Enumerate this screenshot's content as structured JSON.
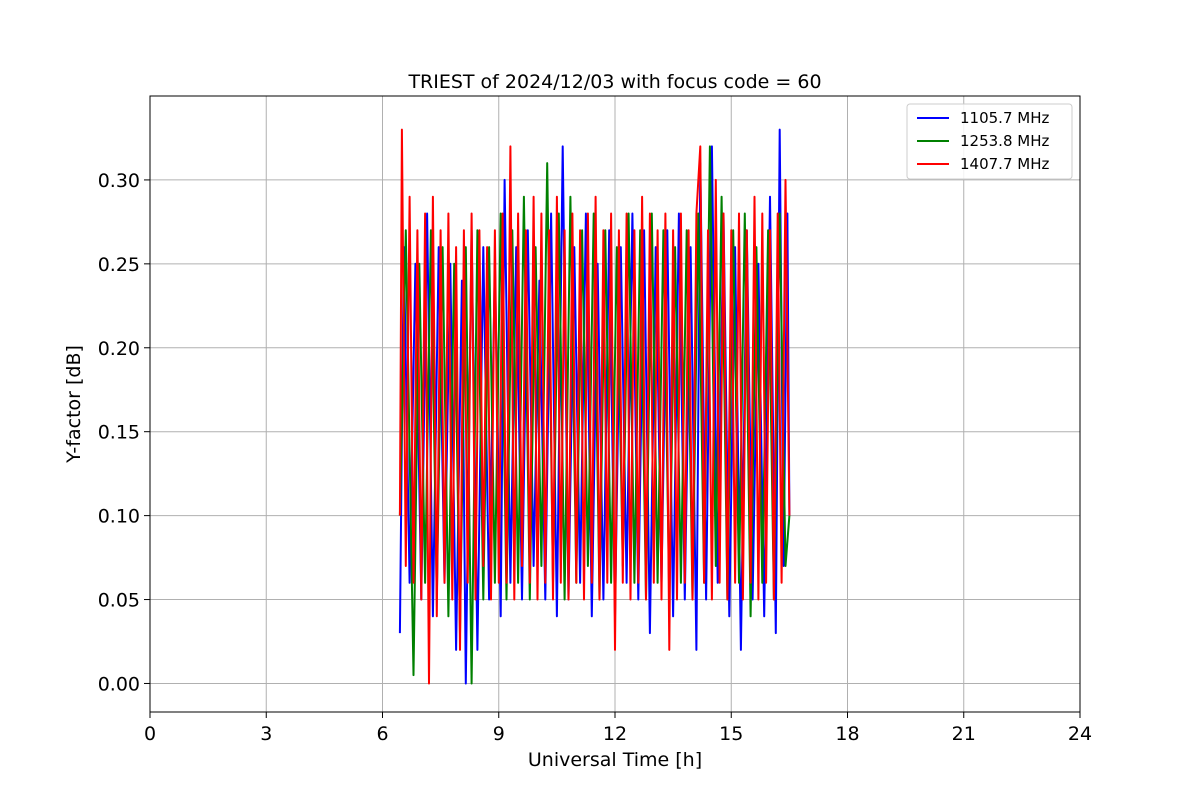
{
  "chart_data": {
    "type": "line",
    "title": "TRIEST of 2024/12/03 with focus code = 60",
    "xlabel": "Universal Time [h]",
    "ylabel": "Y-factor [dB]",
    "xlim": [
      0,
      24
    ],
    "ylim": [
      -0.017,
      0.35
    ],
    "xticks": [
      0,
      3,
      6,
      9,
      12,
      15,
      18,
      21,
      24
    ],
    "xtick_labels": [
      "0",
      "3",
      "6",
      "9",
      "12",
      "15",
      "18",
      "21",
      "24"
    ],
    "yticks": [
      0.0,
      0.05,
      0.1,
      0.15,
      0.2,
      0.25,
      0.3
    ],
    "ytick_labels": [
      "0.00",
      "0.05",
      "0.10",
      "0.15",
      "0.20",
      "0.25",
      "0.30"
    ],
    "grid": true,
    "legend_position": "top-right",
    "series": [
      {
        "name": "1105.7 MHz",
        "color": "#0000ff",
        "x": [
          6.45,
          6.55,
          6.7,
          6.85,
          7.0,
          7.15,
          7.3,
          7.45,
          7.6,
          7.75,
          7.9,
          8.05,
          8.15,
          8.3,
          8.45,
          8.6,
          8.75,
          8.9,
          9.05,
          9.15,
          9.3,
          9.45,
          9.6,
          9.75,
          9.9,
          10.05,
          10.2,
          10.35,
          10.5,
          10.65,
          10.8,
          10.95,
          11.1,
          11.25,
          11.4,
          11.55,
          11.7,
          11.85,
          12.0,
          12.15,
          12.3,
          12.45,
          12.6,
          12.75,
          12.9,
          13.05,
          13.2,
          13.35,
          13.5,
          13.65,
          13.8,
          13.95,
          14.1,
          14.2,
          14.35,
          14.5,
          14.65,
          14.8,
          14.95,
          15.1,
          15.25,
          15.4,
          15.55,
          15.7,
          15.85,
          16.0,
          16.15,
          16.25,
          16.35,
          16.45,
          16.5
        ],
        "y": [
          0.03,
          0.26,
          0.06,
          0.25,
          0.05,
          0.28,
          0.04,
          0.26,
          0.06,
          0.25,
          0.02,
          0.24,
          0.0,
          0.27,
          0.02,
          0.26,
          0.05,
          0.25,
          0.04,
          0.3,
          0.06,
          0.26,
          0.05,
          0.27,
          0.07,
          0.24,
          0.05,
          0.28,
          0.04,
          0.32,
          0.05,
          0.26,
          0.06,
          0.28,
          0.04,
          0.25,
          0.05,
          0.27,
          0.04,
          0.26,
          0.06,
          0.28,
          0.05,
          0.27,
          0.03,
          0.26,
          0.06,
          0.27,
          0.04,
          0.28,
          0.05,
          0.26,
          0.02,
          0.31,
          0.05,
          0.32,
          0.06,
          0.28,
          0.04,
          0.26,
          0.02,
          0.27,
          0.05,
          0.25,
          0.04,
          0.29,
          0.03,
          0.33,
          0.07,
          0.28,
          0.1
        ]
      },
      {
        "name": "1253.8 MHz",
        "color": "#008000",
        "x": [
          6.45,
          6.6,
          6.75,
          6.8,
          6.95,
          7.1,
          7.25,
          7.4,
          7.55,
          7.7,
          7.85,
          8.0,
          8.15,
          8.3,
          8.45,
          8.6,
          8.75,
          8.9,
          9.05,
          9.2,
          9.35,
          9.5,
          9.65,
          9.8,
          9.95,
          10.1,
          10.25,
          10.4,
          10.55,
          10.7,
          10.85,
          11.0,
          11.15,
          11.3,
          11.45,
          11.6,
          11.75,
          11.9,
          12.05,
          12.2,
          12.35,
          12.5,
          12.65,
          12.8,
          12.95,
          13.1,
          13.25,
          13.4,
          13.55,
          13.7,
          13.85,
          14.0,
          14.15,
          14.3,
          14.45,
          14.6,
          14.75,
          14.9,
          15.05,
          15.2,
          15.35,
          15.5,
          15.65,
          15.8,
          15.95,
          16.1,
          16.25,
          16.4,
          16.5
        ],
        "y": [
          0.1,
          0.27,
          0.07,
          0.005,
          0.25,
          0.06,
          0.27,
          0.05,
          0.26,
          0.04,
          0.25,
          0.03,
          0.26,
          0.0,
          0.27,
          0.05,
          0.26,
          0.06,
          0.28,
          0.05,
          0.27,
          0.06,
          0.29,
          0.05,
          0.26,
          0.07,
          0.31,
          0.06,
          0.28,
          0.05,
          0.29,
          0.06,
          0.27,
          0.07,
          0.28,
          0.05,
          0.27,
          0.06,
          0.26,
          0.07,
          0.28,
          0.06,
          0.27,
          0.05,
          0.28,
          0.06,
          0.27,
          0.05,
          0.26,
          0.06,
          0.27,
          0.05,
          0.28,
          0.06,
          0.32,
          0.07,
          0.29,
          0.05,
          0.27,
          0.06,
          0.28,
          0.04,
          0.26,
          0.06,
          0.27,
          0.05,
          0.28,
          0.07,
          0.1
        ]
      },
      {
        "name": "1407.7 MHz",
        "color": "#ff0000",
        "x": [
          6.45,
          6.5,
          6.6,
          6.7,
          6.8,
          6.9,
          7.0,
          7.1,
          7.2,
          7.3,
          7.4,
          7.5,
          7.6,
          7.7,
          7.8,
          7.9,
          8.0,
          8.1,
          8.2,
          8.3,
          8.4,
          8.5,
          8.6,
          8.7,
          8.8,
          8.9,
          9.0,
          9.1,
          9.2,
          9.3,
          9.4,
          9.5,
          9.6,
          9.7,
          9.8,
          9.9,
          10.0,
          10.1,
          10.2,
          10.3,
          10.4,
          10.5,
          10.6,
          10.7,
          10.8,
          10.9,
          11.0,
          11.1,
          11.2,
          11.3,
          11.4,
          11.5,
          11.6,
          11.7,
          11.8,
          11.9,
          12.0,
          12.1,
          12.2,
          12.3,
          12.4,
          12.5,
          12.6,
          12.7,
          12.8,
          12.9,
          13.0,
          13.1,
          13.2,
          13.3,
          13.4,
          13.5,
          13.6,
          13.7,
          13.8,
          13.9,
          14.0,
          14.1,
          14.2,
          14.3,
          14.4,
          14.5,
          14.6,
          14.7,
          14.8,
          14.9,
          15.0,
          15.1,
          15.2,
          15.3,
          15.4,
          15.5,
          15.6,
          15.7,
          15.8,
          15.9,
          16.0,
          16.1,
          16.2,
          16.3,
          16.4,
          16.5
        ],
        "y": [
          0.1,
          0.33,
          0.07,
          0.29,
          0.06,
          0.27,
          0.05,
          0.28,
          0.0,
          0.29,
          0.04,
          0.27,
          0.06,
          0.28,
          0.05,
          0.26,
          0.02,
          0.27,
          0.06,
          0.28,
          0.05,
          0.27,
          0.07,
          0.26,
          0.05,
          0.27,
          0.06,
          0.28,
          0.06,
          0.32,
          0.05,
          0.28,
          0.07,
          0.27,
          0.06,
          0.29,
          0.05,
          0.28,
          0.06,
          0.27,
          0.05,
          0.29,
          0.06,
          0.27,
          0.05,
          0.28,
          0.06,
          0.27,
          0.05,
          0.28,
          0.06,
          0.29,
          0.05,
          0.27,
          0.06,
          0.28,
          0.02,
          0.27,
          0.06,
          0.28,
          0.05,
          0.27,
          0.06,
          0.29,
          0.05,
          0.28,
          0.06,
          0.27,
          0.05,
          0.28,
          0.02,
          0.27,
          0.05,
          0.28,
          0.06,
          0.27,
          0.05,
          0.28,
          0.32,
          0.06,
          0.27,
          0.05,
          0.3,
          0.06,
          0.28,
          0.05,
          0.27,
          0.06,
          0.28,
          0.05,
          0.27,
          0.06,
          0.29,
          0.05,
          0.28,
          0.06,
          0.27,
          0.05,
          0.28,
          0.06,
          0.3,
          0.1
        ]
      }
    ]
  }
}
